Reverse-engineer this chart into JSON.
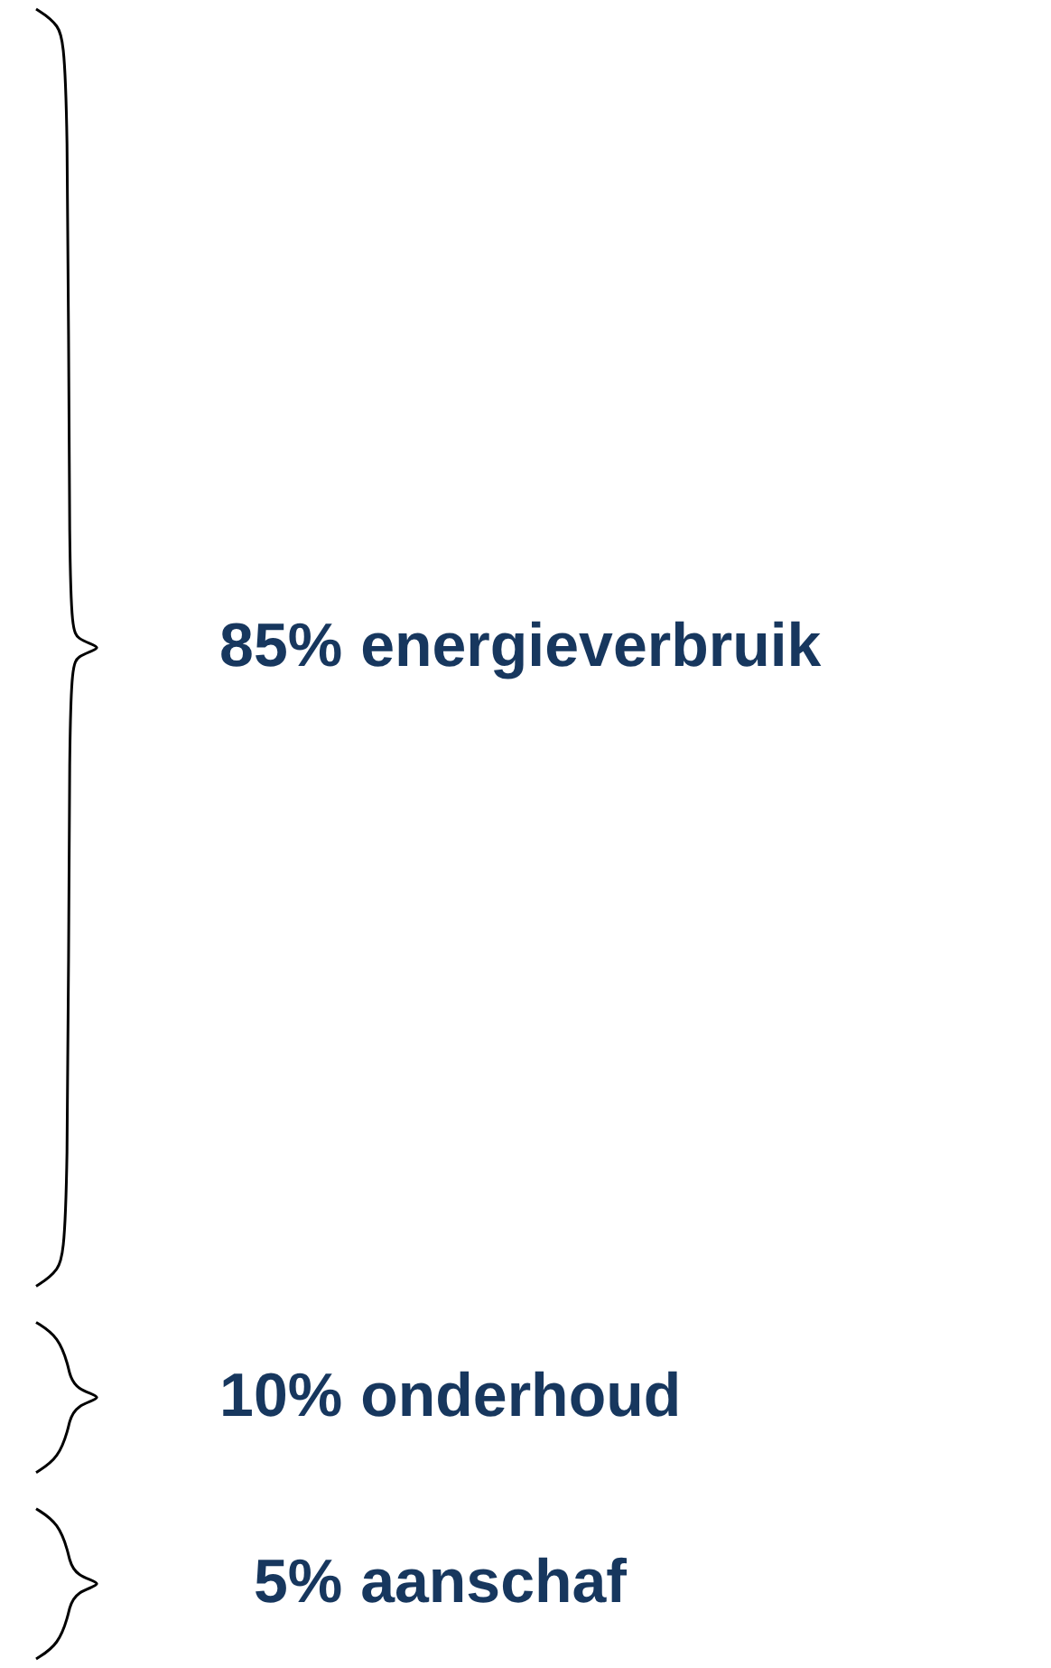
{
  "chart_data": {
    "type": "other",
    "categories": [
      "energieverbruik",
      "onderhoud",
      "aanschaf"
    ],
    "values": [
      85,
      10,
      5
    ],
    "value_labels": [
      "85%",
      "10%",
      "5%"
    ],
    "colors": [
      "#17375e",
      "#17375e",
      "#17375e"
    ]
  }
}
